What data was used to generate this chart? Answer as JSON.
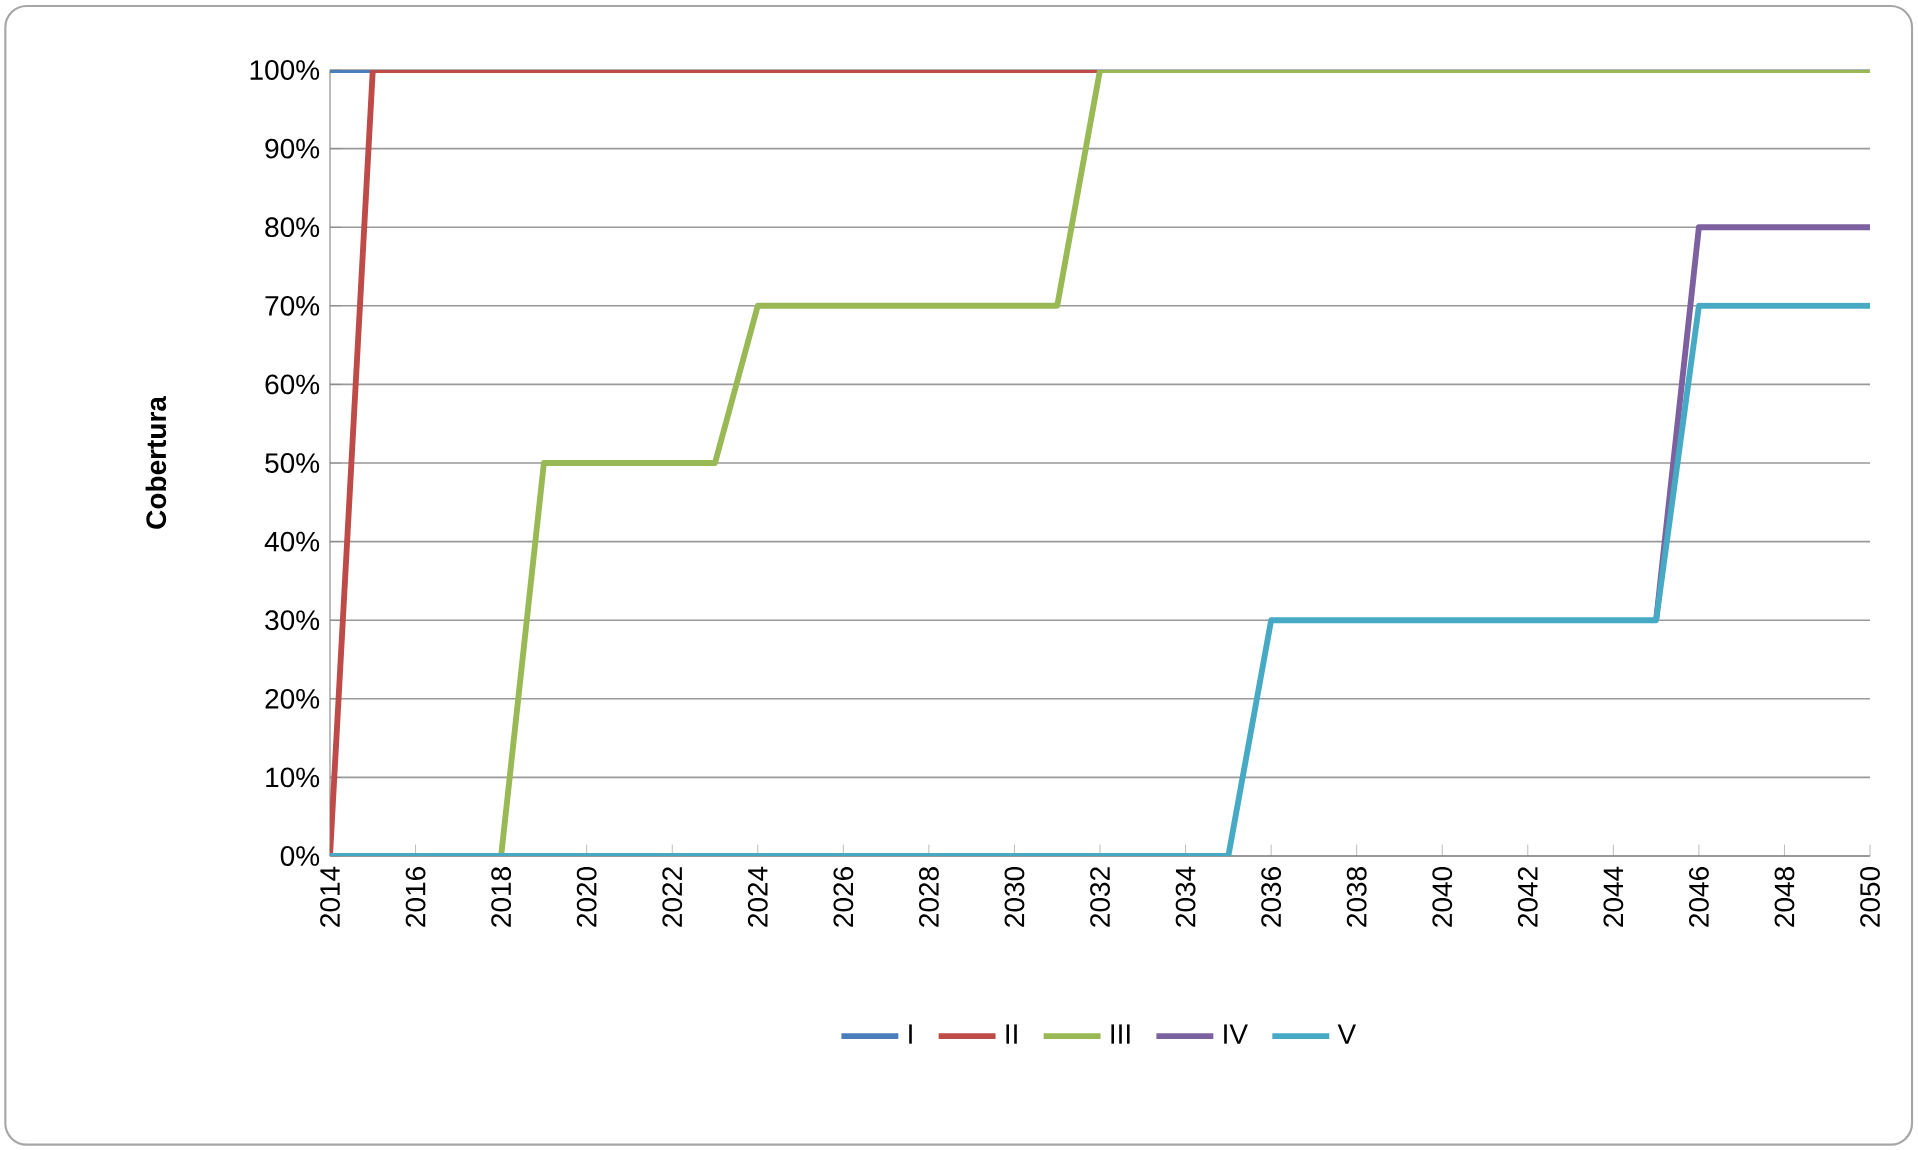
{
  "chart_data": {
    "type": "line",
    "ylabel": "Cobertura",
    "x": [
      2014,
      2015,
      2016,
      2017,
      2018,
      2019,
      2020,
      2021,
      2022,
      2023,
      2024,
      2025,
      2026,
      2027,
      2028,
      2029,
      2030,
      2031,
      2032,
      2033,
      2034,
      2035,
      2036,
      2037,
      2038,
      2039,
      2040,
      2041,
      2042,
      2043,
      2044,
      2045,
      2046,
      2047,
      2048,
      2049,
      2050
    ],
    "xlim": [
      2014,
      2050
    ],
    "xticks": [
      2014,
      2016,
      2018,
      2020,
      2022,
      2024,
      2026,
      2028,
      2030,
      2032,
      2034,
      2036,
      2038,
      2040,
      2042,
      2044,
      2046,
      2048,
      2050
    ],
    "ylim": [
      0,
      100
    ],
    "yticks": [
      {
        "value": 0,
        "label": "0%"
      },
      {
        "value": 10,
        "label": "10%"
      },
      {
        "value": 20,
        "label": "20%"
      },
      {
        "value": 30,
        "label": "30%"
      },
      {
        "value": 40,
        "label": "40%"
      },
      {
        "value": 50,
        "label": "50%"
      },
      {
        "value": 60,
        "label": "60%"
      },
      {
        "value": 70,
        "label": "70%"
      },
      {
        "value": 80,
        "label": "80%"
      },
      {
        "value": 90,
        "label": "90%"
      },
      {
        "value": 100,
        "label": "100%"
      }
    ],
    "grid": "y",
    "legend": "bottom",
    "marker": "none",
    "line_style": "solid",
    "series": [
      {
        "name": "I",
        "color": "#4a7ebb",
        "values": [
          100,
          100,
          null,
          null,
          null,
          null,
          null,
          null,
          null,
          null,
          null,
          null,
          null,
          null,
          null,
          null,
          null,
          null,
          null,
          null,
          null,
          null,
          null,
          null,
          null,
          null,
          null,
          null,
          null,
          null,
          null,
          null,
          null,
          null,
          null,
          null,
          null
        ]
      },
      {
        "name": "II",
        "color": "#be4b48",
        "values": [
          0,
          100,
          100,
          100,
          100,
          100,
          100,
          100,
          100,
          100,
          100,
          100,
          100,
          100,
          100,
          100,
          100,
          100,
          100,
          null,
          null,
          null,
          null,
          null,
          null,
          null,
          null,
          null,
          null,
          null,
          null,
          null,
          null,
          null,
          null,
          null,
          null
        ]
      },
      {
        "name": "III",
        "color": "#98b954",
        "values": [
          null,
          null,
          null,
          null,
          0,
          50,
          50,
          50,
          50,
          50,
          70,
          70,
          70,
          70,
          70,
          70,
          70,
          70,
          100,
          100,
          100,
          100,
          100,
          100,
          100,
          100,
          100,
          100,
          100,
          100,
          100,
          100,
          100,
          100,
          100,
          100,
          100
        ]
      },
      {
        "name": "IV",
        "color": "#7d60a0",
        "values": [
          null,
          null,
          null,
          null,
          null,
          null,
          null,
          null,
          null,
          null,
          null,
          null,
          null,
          null,
          null,
          null,
          null,
          null,
          null,
          null,
          null,
          null,
          null,
          null,
          null,
          null,
          null,
          null,
          null,
          null,
          null,
          30,
          80,
          80,
          80,
          80,
          80
        ]
      },
      {
        "name": "V",
        "color": "#46aac5",
        "values": [
          0,
          0,
          0,
          0,
          0,
          0,
          0,
          0,
          0,
          0,
          0,
          0,
          0,
          0,
          0,
          0,
          0,
          0,
          0,
          0,
          0,
          0,
          30,
          30,
          30,
          30,
          30,
          30,
          30,
          30,
          30,
          30,
          70,
          70,
          70,
          70,
          70
        ]
      }
    ]
  }
}
